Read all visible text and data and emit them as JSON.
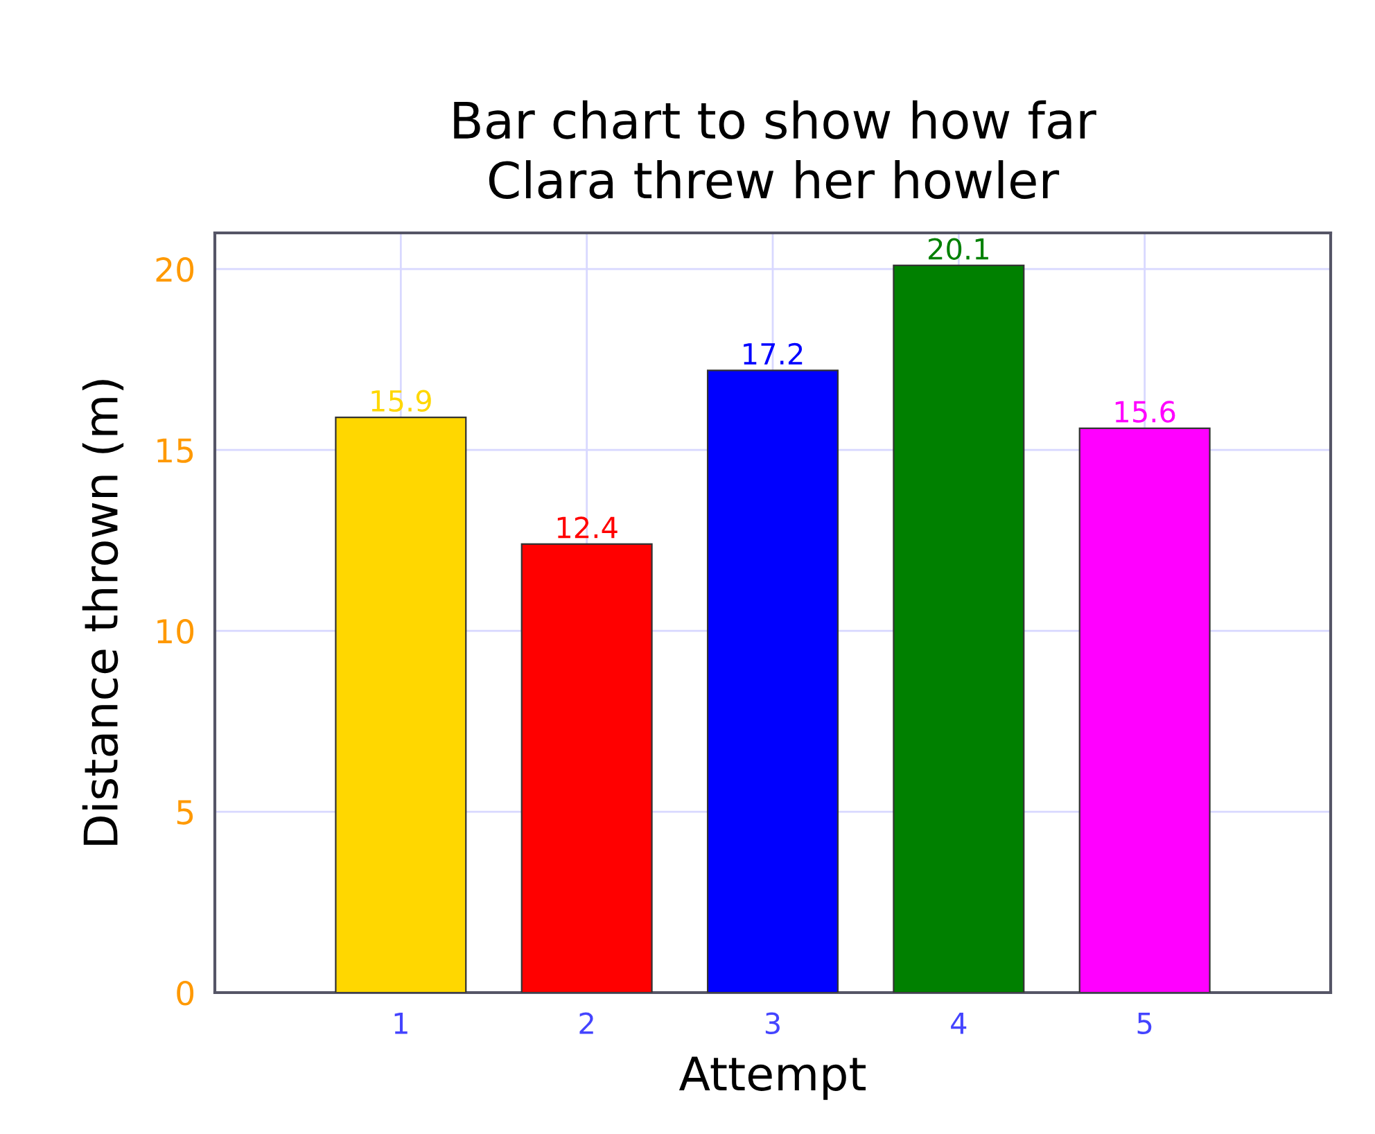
{
  "chart_data": {
    "type": "bar",
    "title": "Bar chart to show how far\nClara threw her howler",
    "xlabel": "Attempt",
    "ylabel": "Distance thrown (m)",
    "categories": [
      "1",
      "2",
      "3",
      "4",
      "5"
    ],
    "values": [
      15.9,
      12.4,
      17.2,
      20.1,
      15.6
    ],
    "colors": [
      "#ffd700",
      "#ff0000",
      "#0000ff",
      "#008000",
      "#ff00ff"
    ],
    "ylim": [
      0,
      21
    ],
    "yticks": [
      0,
      5,
      10,
      15,
      20
    ],
    "grid": true,
    "data_labels": true
  }
}
